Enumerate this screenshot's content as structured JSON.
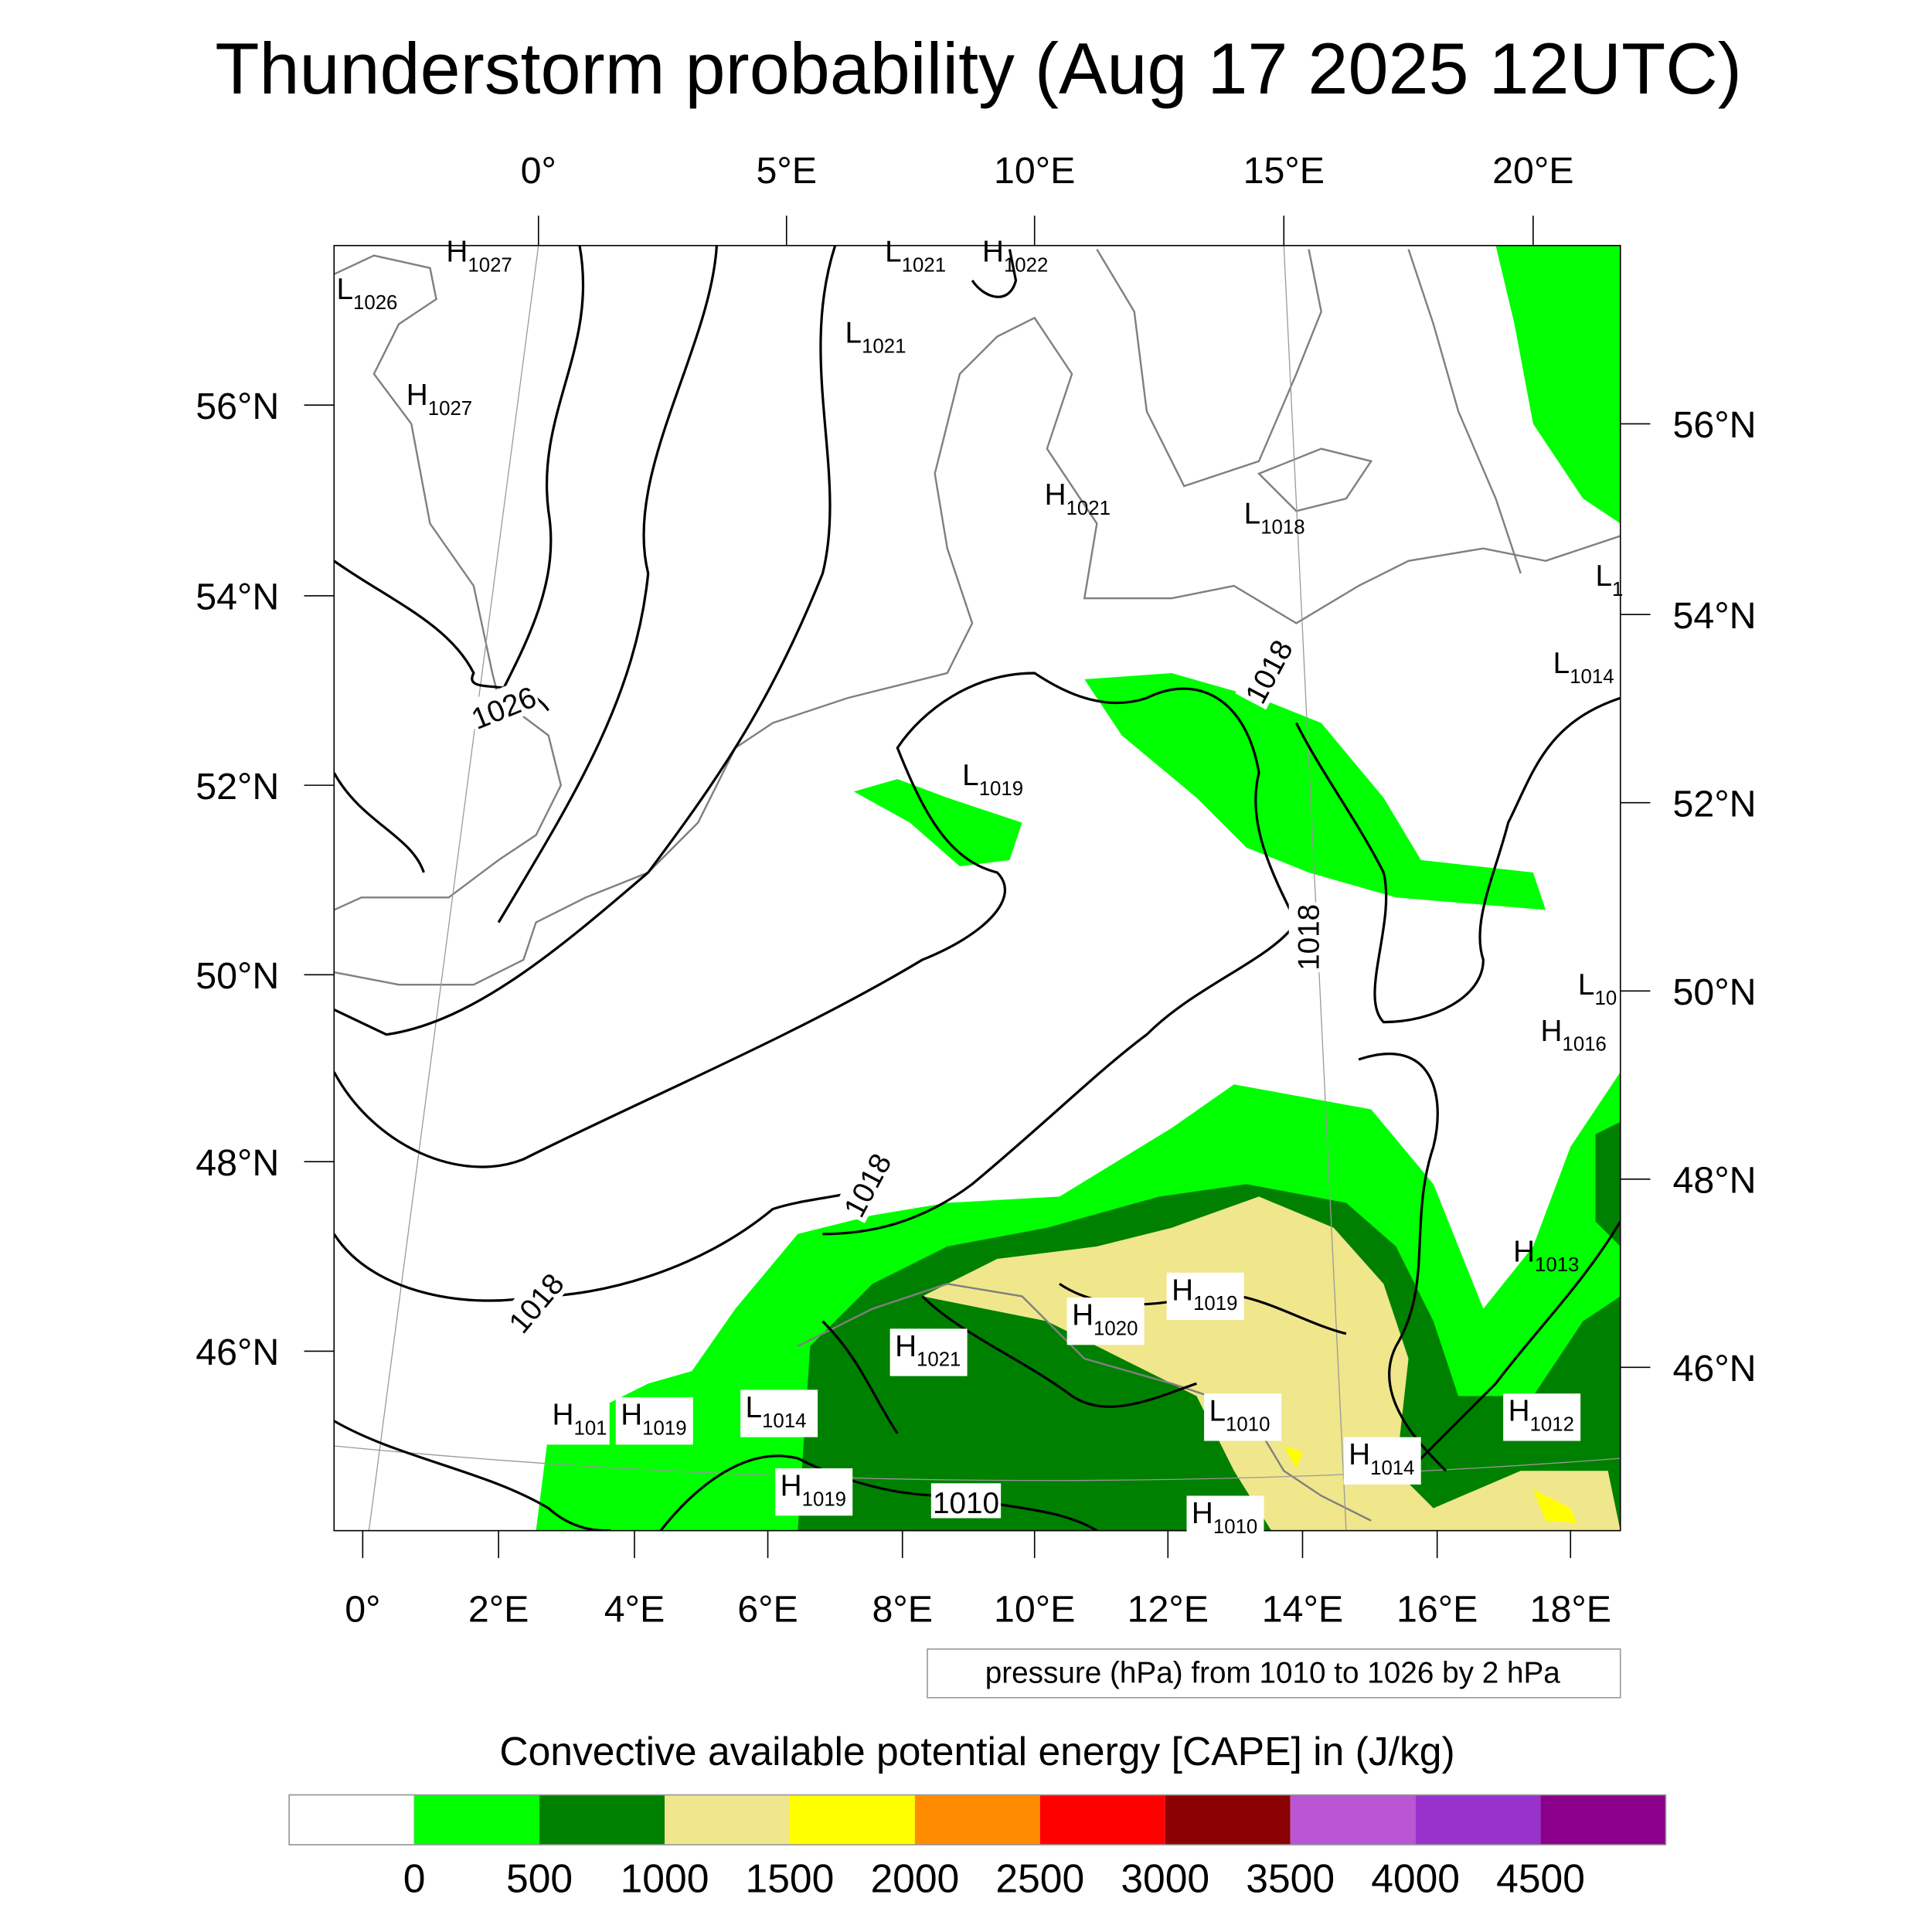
{
  "title": "Thunderstorm probability (Aug 17 2025 12UTC)",
  "top_lon_labels": [
    "0°",
    "5°E",
    "10°E",
    "15°E",
    "20°E"
  ],
  "bottom_lon_labels": [
    "0°",
    "2°E",
    "4°E",
    "6°E",
    "8°E",
    "10°E",
    "12°E",
    "14°E",
    "16°E",
    "18°E"
  ],
  "left_lat_labels": [
    "56°N",
    "54°N",
    "52°N",
    "50°N",
    "48°N",
    "46°N"
  ],
  "right_lat_labels": [
    "56°N",
    "54°N",
    "52°N",
    "50°N",
    "48°N",
    "46°N"
  ],
  "contour_legend": "pressure (hPa) from 1010 to 1026 by 2 hPa",
  "colorbar": {
    "title": "Convective available potential energy [CAPE] in (J/kg)",
    "labels": [
      "0",
      "500",
      "1000",
      "1500",
      "2000",
      "2500",
      "3000",
      "3500",
      "4000",
      "4500"
    ],
    "colors": [
      "#ffffff",
      "#00ff00",
      "#008000",
      "#f0e68c",
      "#ffff00",
      "#ff8c00",
      "#ff0000",
      "#8b0000",
      "#ba55d3",
      "#9932cc",
      "#8b008b"
    ]
  },
  "pressure_centers": [
    {
      "type": "H",
      "value": "1027"
    },
    {
      "type": "L",
      "value": "1026"
    },
    {
      "type": "H",
      "value": "1027"
    },
    {
      "type": "L",
      "value": "1021"
    },
    {
      "type": "H",
      "value": "1022"
    },
    {
      "type": "L",
      "value": "1021"
    },
    {
      "type": "H",
      "value": "1021"
    },
    {
      "type": "L",
      "value": "1018"
    },
    {
      "type": "L",
      "value": "1"
    },
    {
      "type": "L",
      "value": "1014"
    },
    {
      "type": "L",
      "value": "1019"
    },
    {
      "type": "L",
      "value": "10"
    },
    {
      "type": "H",
      "value": "1016"
    },
    {
      "type": "H",
      "value": "1013"
    },
    {
      "type": "H",
      "value": "1019"
    },
    {
      "type": "H",
      "value": "1020"
    },
    {
      "type": "H",
      "value": "1021"
    },
    {
      "type": "L",
      "value": "1014"
    },
    {
      "type": "H",
      "value": "101"
    },
    {
      "type": "H",
      "value": "1019"
    },
    {
      "type": "L",
      "value": "1010"
    },
    {
      "type": "H",
      "value": "1012"
    },
    {
      "type": "H",
      "value": "1014"
    },
    {
      "type": "H",
      "value": "1019"
    },
    {
      "type": "H",
      "value": "1010"
    }
  ],
  "contour_labels": [
    "1026",
    "1018",
    "1018",
    "1018",
    "1018",
    "1010"
  ]
}
